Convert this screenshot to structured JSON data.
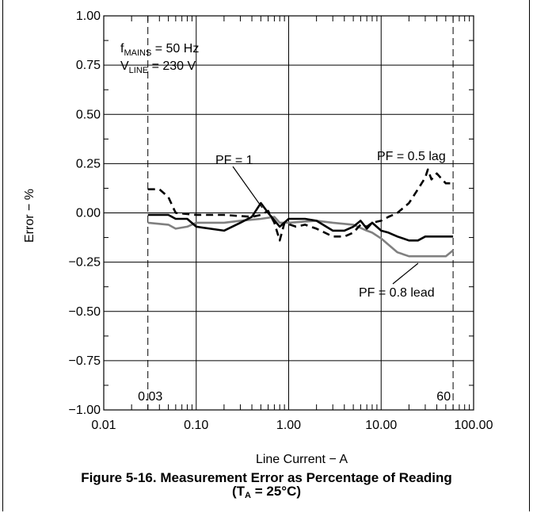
{
  "chart_data": {
    "type": "line",
    "xscale": "log",
    "xlabel": "Line Current − A",
    "ylabel": "Error − %",
    "xlim": [
      0.01,
      100
    ],
    "ylim": [
      -1.0,
      1.0
    ],
    "x_tick_labels": [
      "0.01",
      "0.10",
      "1.00",
      "10.00",
      "100.00"
    ],
    "y_tick_labels": [
      "1.00",
      "0.75",
      "0.50",
      "0.25",
      "0.00",
      "−0.25",
      "−0.50",
      "−0.75",
      "−1.00"
    ],
    "grid": true,
    "conditions": {
      "fmains": {
        "main": "f",
        "sub": "MAINS",
        "rest": " = 50 Hz"
      },
      "vline": {
        "main": "V",
        "sub": "LINE",
        "rest": " = 230 V"
      }
    },
    "range_markers": [
      {
        "x": 0.03,
        "label": "0.03"
      },
      {
        "x": 60,
        "label": "60"
      }
    ],
    "series": [
      {
        "name": "PF = 1",
        "color": "#000000",
        "style": "solid",
        "points": [
          [
            0.03,
            -0.01
          ],
          [
            0.05,
            -0.01
          ],
          [
            0.06,
            -0.03
          ],
          [
            0.08,
            -0.03
          ],
          [
            0.1,
            -0.07
          ],
          [
            0.2,
            -0.09
          ],
          [
            0.3,
            -0.05
          ],
          [
            0.4,
            -0.02
          ],
          [
            0.5,
            0.05
          ],
          [
            0.6,
            0.0
          ],
          [
            0.8,
            -0.07
          ],
          [
            1.0,
            -0.03
          ],
          [
            1.5,
            -0.03
          ],
          [
            2.0,
            -0.04
          ],
          [
            3.0,
            -0.09
          ],
          [
            4.0,
            -0.09
          ],
          [
            5.0,
            -0.07
          ],
          [
            6.0,
            -0.04
          ],
          [
            7.0,
            -0.08
          ],
          [
            8.0,
            -0.05
          ],
          [
            10,
            -0.09
          ],
          [
            12,
            -0.1
          ],
          [
            15,
            -0.12
          ],
          [
            20,
            -0.14
          ],
          [
            25,
            -0.14
          ],
          [
            30,
            -0.12
          ],
          [
            40,
            -0.12
          ],
          [
            50,
            -0.12
          ],
          [
            60,
            -0.12
          ]
        ]
      },
      {
        "name": "PF = 0.5 lag",
        "color": "#000000",
        "style": "dashed",
        "points": [
          [
            0.03,
            0.12
          ],
          [
            0.04,
            0.12
          ],
          [
            0.05,
            0.08
          ],
          [
            0.06,
            0.0
          ],
          [
            0.1,
            -0.01
          ],
          [
            0.2,
            -0.01
          ],
          [
            0.4,
            -0.02
          ],
          [
            0.5,
            -0.01
          ],
          [
            0.6,
            0.01
          ],
          [
            0.7,
            -0.05
          ],
          [
            0.8,
            -0.14
          ],
          [
            0.9,
            -0.05
          ],
          [
            1.2,
            -0.07
          ],
          [
            1.5,
            -0.06
          ],
          [
            2.0,
            -0.08
          ],
          [
            3.0,
            -0.12
          ],
          [
            4.0,
            -0.12
          ],
          [
            5.0,
            -0.1
          ],
          [
            6.0,
            -0.06
          ],
          [
            7.0,
            -0.07
          ],
          [
            8.0,
            -0.05
          ],
          [
            10,
            -0.04
          ],
          [
            12,
            -0.02
          ],
          [
            15,
            0.0
          ],
          [
            20,
            0.05
          ],
          [
            25,
            0.12
          ],
          [
            30,
            0.18
          ],
          [
            32,
            0.22
          ],
          [
            35,
            0.17
          ],
          [
            40,
            0.2
          ],
          [
            50,
            0.15
          ],
          [
            60,
            0.15
          ]
        ]
      },
      {
        "name": "PF = 0.8 lead",
        "color": "#808080",
        "style": "solid",
        "points": [
          [
            0.03,
            -0.05
          ],
          [
            0.05,
            -0.06
          ],
          [
            0.06,
            -0.08
          ],
          [
            0.08,
            -0.07
          ],
          [
            0.1,
            -0.05
          ],
          [
            0.2,
            -0.05
          ],
          [
            0.3,
            -0.04
          ],
          [
            0.5,
            -0.03
          ],
          [
            0.7,
            -0.02
          ],
          [
            0.8,
            -0.05
          ],
          [
            1.0,
            -0.05
          ],
          [
            2.0,
            -0.04
          ],
          [
            3.0,
            -0.05
          ],
          [
            5.0,
            -0.06
          ],
          [
            7.0,
            -0.09
          ],
          [
            8.0,
            -0.1
          ],
          [
            10,
            -0.13
          ],
          [
            15,
            -0.2
          ],
          [
            20,
            -0.22
          ],
          [
            30,
            -0.22
          ],
          [
            40,
            -0.22
          ],
          [
            50,
            -0.22
          ],
          [
            60,
            -0.19
          ]
        ]
      }
    ]
  },
  "caption": {
    "line1": "Figure 5-16. Measurement Error as Percentage of Reading",
    "line2_prefix": "(T",
    "line2_sub": "A",
    "line2_suffix": " = 25°C)"
  }
}
